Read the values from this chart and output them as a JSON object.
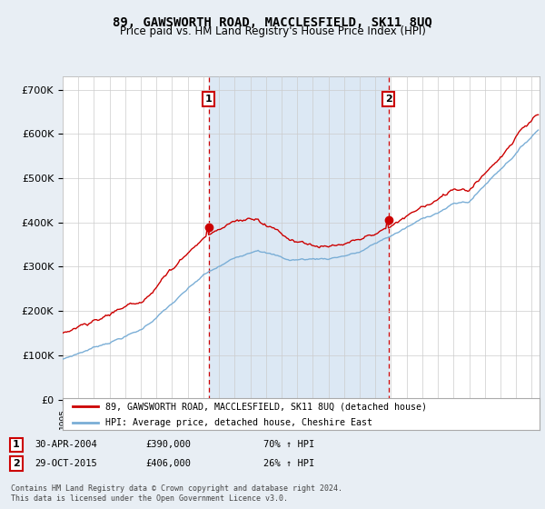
{
  "title": "89, GAWSWORTH ROAD, MACCLESFIELD, SK11 8UQ",
  "subtitle": "Price paid vs. HM Land Registry's House Price Index (HPI)",
  "title_fontsize": 10,
  "subtitle_fontsize": 8.5,
  "ylabel_ticks": [
    "£0",
    "£100K",
    "£200K",
    "£300K",
    "£400K",
    "£500K",
    "£600K",
    "£700K"
  ],
  "ytick_vals": [
    0,
    100000,
    200000,
    300000,
    400000,
    500000,
    600000,
    700000
  ],
  "ylim": [
    0,
    730000
  ],
  "xlim_start": 1995.0,
  "xlim_end": 2025.5,
  "sale1_x": 2004.33,
  "sale1_y": 390000,
  "sale2_x": 2015.83,
  "sale2_y": 406000,
  "sale1_date": "30-APR-2004",
  "sale1_price": "£390,000",
  "sale1_hpi": "70% ↑ HPI",
  "sale2_date": "29-OCT-2015",
  "sale2_price": "£406,000",
  "sale2_hpi": "26% ↑ HPI",
  "line_color_property": "#cc0000",
  "line_color_hpi": "#7aaed6",
  "dashed_color": "#cc0000",
  "background_color": "#e8eef4",
  "plot_bg": "#ffffff",
  "shade_color": "#dce8f4",
  "legend_property": "89, GAWSWORTH ROAD, MACCLESFIELD, SK11 8UQ (detached house)",
  "legend_hpi": "HPI: Average price, detached house, Cheshire East",
  "footer": "Contains HM Land Registry data © Crown copyright and database right 2024.\nThis data is licensed under the Open Government Licence v3.0.",
  "grid_color": "#cccccc"
}
